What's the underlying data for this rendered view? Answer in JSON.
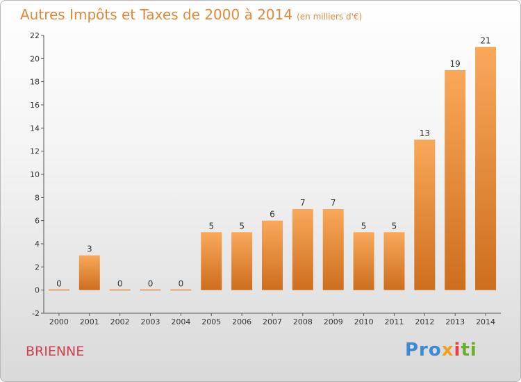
{
  "title": {
    "main": "Autres Impôts et Taxes de 2000 à 2014",
    "unit": "(en milliers d'€)"
  },
  "commune": "BRIENNE",
  "logo": {
    "p1": "Pro",
    "p2": "x",
    "p3": "i",
    "p4": "ti"
  },
  "colors": {
    "bar_light": "#f9a85a",
    "bar_dark": "#cd6e1e",
    "title": "#e0883a",
    "commune": "#d2404e"
  },
  "chart_data": {
    "type": "bar",
    "categories": [
      "2000",
      "2001",
      "2002",
      "2003",
      "2004",
      "2005",
      "2006",
      "2007",
      "2008",
      "2009",
      "2010",
      "2011",
      "2012",
      "2013",
      "2014"
    ],
    "values": [
      0,
      3,
      0,
      0,
      0,
      5,
      5,
      6,
      7,
      7,
      5,
      5,
      13,
      19,
      21
    ],
    "value_labels": [
      "0",
      "3",
      "0",
      "0",
      "0",
      "5",
      "5",
      "6",
      "7",
      "7",
      "5",
      "5",
      "13",
      "19",
      "21"
    ],
    "yticks": [
      "-2",
      "0",
      "2",
      "4",
      "6",
      "8",
      "10",
      "12",
      "14",
      "16",
      "18",
      "20",
      "22"
    ],
    "ylim": [
      -2,
      22
    ],
    "grid": false
  }
}
